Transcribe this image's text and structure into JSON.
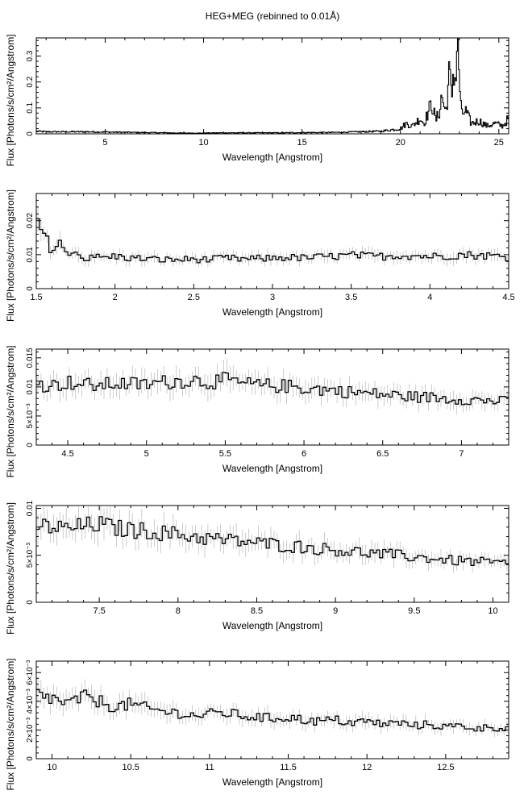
{
  "title": "HEG+MEG (rebinned to 0.01Å)",
  "chart_data": [
    {
      "type": "line",
      "xlabel": "Wavelength [Angstrom]",
      "ylabel": "Flux [Photons/s/cm²/Angstrom]",
      "xlim": [
        1.5,
        25.5
      ],
      "ylim": [
        0,
        0.37
      ],
      "xticks": [
        5,
        10,
        15,
        20,
        25
      ],
      "xtick_labels": [
        "5",
        "10",
        "15",
        "20",
        "25"
      ],
      "yticks": [
        0,
        0.1,
        0.2,
        0.3
      ],
      "ytick_labels": [
        "0",
        "0.1",
        "0.2",
        "0.3"
      ],
      "series": [
        {
          "x": [
            1.5,
            2,
            3,
            4,
            5,
            6,
            7,
            8,
            9,
            10,
            11,
            12,
            13,
            14,
            15,
            16,
            17,
            18,
            19,
            19.5,
            20,
            20.3,
            20.6,
            21,
            21.2,
            21.6,
            21.8,
            22,
            22.1,
            22.3,
            22.5,
            22.6,
            22.7,
            22.8,
            22.9,
            23,
            23.1,
            23.3,
            23.6,
            24,
            24.4,
            24.8,
            25.2,
            25.5
          ],
          "y": [
            0.01,
            0.008,
            0.008,
            0.008,
            0.007,
            0.006,
            0.005,
            0.004,
            0.003,
            0.003,
            0.004,
            0.004,
            0.004,
            0.004,
            0.005,
            0.005,
            0.006,
            0.008,
            0.01,
            0.015,
            0.02,
            0.04,
            0.03,
            0.06,
            0.04,
            0.12,
            0.05,
            0.09,
            0.15,
            0.08,
            0.24,
            0.12,
            0.27,
            0.19,
            0.37,
            0.21,
            0.07,
            0.09,
            0.04,
            0.05,
            0.03,
            0.04,
            0.03,
            0.06
          ]
        }
      ]
    },
    {
      "type": "line",
      "xlabel": "Wavelength [Angstrom]",
      "ylabel": "Flux [Photons/s/cm²/Angstrom]",
      "xlim": [
        1.5,
        4.5
      ],
      "ylim": [
        0,
        0.028
      ],
      "xticks": [
        1.5,
        2,
        2.5,
        3,
        3.5,
        4,
        4.5
      ],
      "xtick_labels": [
        "1.5",
        "2",
        "2.5",
        "3",
        "3.5",
        "4",
        "4.5"
      ],
      "yticks": [
        0,
        0.01,
        0.02
      ],
      "ytick_labels": [
        "0",
        "0.01",
        "0.02"
      ],
      "series": [
        {
          "x": [
            1.5,
            1.55,
            1.6,
            1.65,
            1.7,
            1.75,
            1.8,
            1.85,
            1.9,
            2.0,
            2.1,
            2.2,
            2.3,
            2.4,
            2.5,
            2.6,
            2.7,
            2.8,
            2.9,
            3.0,
            3.1,
            3.2,
            3.3,
            3.4,
            3.5,
            3.6,
            3.7,
            3.8,
            3.9,
            4.0,
            4.1,
            4.2,
            4.3,
            4.4,
            4.5
          ],
          "y": [
            0.02,
            0.016,
            0.011,
            0.014,
            0.009,
            0.012,
            0.008,
            0.01,
            0.009,
            0.0095,
            0.009,
            0.0088,
            0.0085,
            0.0085,
            0.0087,
            0.0085,
            0.009,
            0.0087,
            0.0088,
            0.009,
            0.0092,
            0.009,
            0.0093,
            0.0095,
            0.0098,
            0.0096,
            0.0095,
            0.0098,
            0.0097,
            0.0095,
            0.0096,
            0.01,
            0.0098,
            0.0097,
            0.0092
          ]
        }
      ]
    },
    {
      "type": "line",
      "xlabel": "Wavelength [Angstrom]",
      "ylabel": "Flux [Photons/s/cm²/Angstrom]",
      "xlim": [
        4.3,
        7.3
      ],
      "ylim": [
        0,
        0.0165
      ],
      "xticks": [
        4.5,
        5,
        5.5,
        6,
        6.5,
        7
      ],
      "xtick_labels": [
        "4.5",
        "5",
        "5.5",
        "6",
        "6.5",
        "7"
      ],
      "yticks": [
        0,
        0.005,
        0.01,
        0.015
      ],
      "ytick_labels": [
        "0",
        "5×10⁻³",
        "0.01",
        "0.015"
      ],
      "series": [
        {
          "x": [
            4.3,
            4.4,
            4.5,
            4.6,
            4.7,
            4.8,
            4.9,
            5.0,
            5.1,
            5.2,
            5.3,
            5.4,
            5.5,
            5.6,
            5.7,
            5.8,
            5.9,
            6.0,
            6.1,
            6.2,
            6.3,
            6.4,
            6.5,
            6.6,
            6.7,
            6.8,
            6.9,
            7.0,
            7.1,
            7.2,
            7.3
          ],
          "y": [
            0.0105,
            0.0102,
            0.0108,
            0.0104,
            0.0102,
            0.0106,
            0.0105,
            0.0104,
            0.0108,
            0.011,
            0.0112,
            0.0108,
            0.0112,
            0.0106,
            0.0103,
            0.0102,
            0.0101,
            0.0098,
            0.0096,
            0.0094,
            0.0091,
            0.0089,
            0.0087,
            0.0085,
            0.0083,
            0.0082,
            0.008,
            0.0079,
            0.0077,
            0.0076,
            0.0075
          ]
        }
      ]
    },
    {
      "type": "line",
      "xlabel": "Wavelength [Angstrom]",
      "ylabel": "Flux [Photons/s/cm²/Angstrom]",
      "xlim": [
        7.1,
        10.1
      ],
      "ylim": [
        0,
        0.0103
      ],
      "xticks": [
        7.5,
        8,
        8.5,
        9,
        9.5,
        10
      ],
      "xtick_labels": [
        "7.5",
        "8",
        "8.5",
        "9",
        "9.5",
        "10"
      ],
      "yticks": [
        0,
        0.005,
        0.01
      ],
      "ytick_labels": [
        "0",
        "5×10⁻³",
        "0.01"
      ],
      "series": [
        {
          "x": [
            7.1,
            7.2,
            7.3,
            7.4,
            7.5,
            7.6,
            7.7,
            7.8,
            7.9,
            8.0,
            8.1,
            8.2,
            8.3,
            8.4,
            8.5,
            8.6,
            8.7,
            8.8,
            8.9,
            9.0,
            9.1,
            9.2,
            9.3,
            9.4,
            9.5,
            9.6,
            9.7,
            9.8,
            9.9,
            10.0,
            10.1
          ],
          "y": [
            0.0082,
            0.008,
            0.0078,
            0.0081,
            0.0083,
            0.0079,
            0.0077,
            0.0076,
            0.0074,
            0.0072,
            0.007,
            0.0068,
            0.0066,
            0.0065,
            0.0063,
            0.0062,
            0.006,
            0.0059,
            0.0057,
            0.0056,
            0.0054,
            0.0053,
            0.0051,
            0.005,
            0.0048,
            0.0047,
            0.0045,
            0.0044,
            0.0043,
            0.0042,
            0.0041
          ]
        }
      ]
    },
    {
      "type": "line",
      "xlabel": "Wavelength [Angstrom]",
      "ylabel": "Flux [Photons/s/cm²/Angstrom]",
      "xlim": [
        9.9,
        12.9
      ],
      "ylim": [
        0,
        0.0068
      ],
      "xticks": [
        10,
        10.5,
        11,
        11.5,
        12,
        12.5
      ],
      "xtick_labels": [
        "10",
        "10.5",
        "11",
        "11.5",
        "12",
        "12.5"
      ],
      "yticks": [
        0,
        0.002,
        0.004,
        0.006
      ],
      "ytick_labels": [
        "0",
        "2×10⁻³",
        "4×10⁻³",
        "6×10⁻³"
      ],
      "series": [
        {
          "x": [
            9.9,
            10.0,
            10.1,
            10.2,
            10.3,
            10.4,
            10.5,
            10.6,
            10.7,
            10.8,
            10.9,
            11.0,
            11.1,
            11.2,
            11.3,
            11.4,
            11.5,
            11.6,
            11.7,
            11.8,
            11.9,
            12.0,
            12.1,
            12.2,
            12.3,
            12.4,
            12.5,
            12.6,
            12.7,
            12.8,
            12.9
          ],
          "y": [
            0.0045,
            0.0042,
            0.0038,
            0.0043,
            0.004,
            0.0036,
            0.0038,
            0.0035,
            0.0033,
            0.0032,
            0.003,
            0.0031,
            0.0032,
            0.003,
            0.0029,
            0.0028,
            0.0029,
            0.0027,
            0.0026,
            0.0027,
            0.0025,
            0.0026,
            0.0024,
            0.0025,
            0.0023,
            0.0024,
            0.0022,
            0.0023,
            0.0021,
            0.0022,
            0.0021
          ]
        }
      ]
    }
  ]
}
